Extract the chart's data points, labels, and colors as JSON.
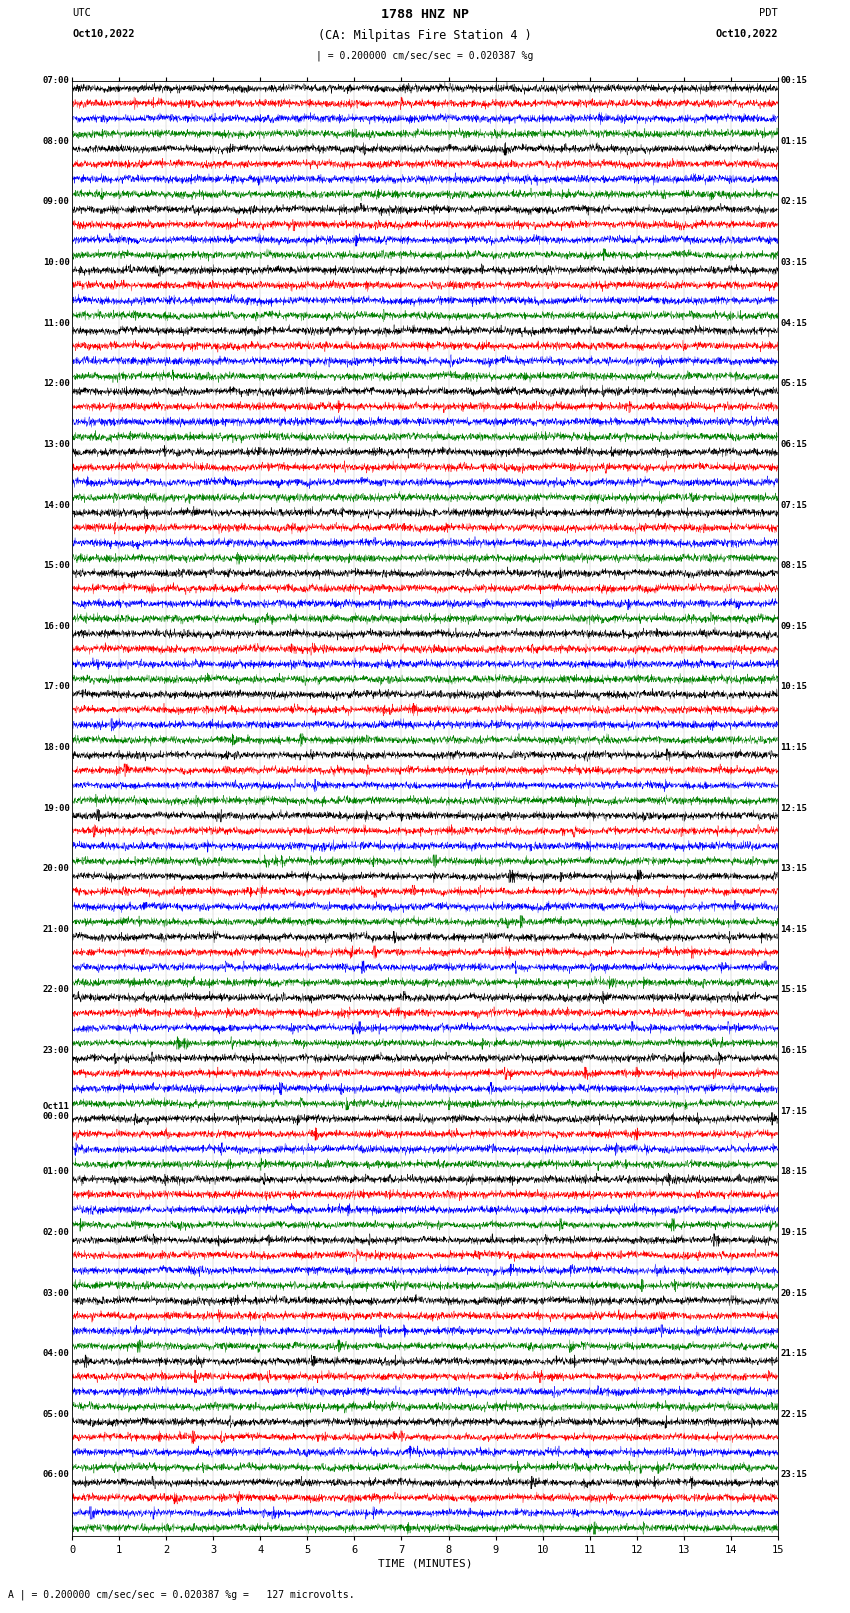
{
  "title_line1": "1788 HNZ NP",
  "title_line2": "(CA: Milpitas Fire Station 4 )",
  "scale_label": "| = 0.200000 cm/sec/sec = 0.020387 %g",
  "left_header": "UTC",
  "left_subheader": "Oct10,2022",
  "right_header": "PDT",
  "right_subheader": "Oct10,2022",
  "xlabel": "TIME (MINUTES)",
  "footer": "A | = 0.200000 cm/sec/sec = 0.020387 %g =   127 microvolts.",
  "xlim": [
    0,
    15
  ],
  "xticks": [
    0,
    1,
    2,
    3,
    4,
    5,
    6,
    7,
    8,
    9,
    10,
    11,
    12,
    13,
    14,
    15
  ],
  "bg_color": "#ffffff",
  "trace_colors": [
    "black",
    "red",
    "blue",
    "green"
  ],
  "fig_width": 8.5,
  "fig_height": 16.13,
  "dpi": 100,
  "left_times": [
    "07:00",
    "",
    "",
    "",
    "08:00",
    "",
    "",
    "",
    "09:00",
    "",
    "",
    "",
    "10:00",
    "",
    "",
    "",
    "11:00",
    "",
    "",
    "",
    "12:00",
    "",
    "",
    "",
    "13:00",
    "",
    "",
    "",
    "14:00",
    "",
    "",
    "",
    "15:00",
    "",
    "",
    "",
    "16:00",
    "",
    "",
    "",
    "17:00",
    "",
    "",
    "",
    "18:00",
    "",
    "",
    "",
    "19:00",
    "",
    "",
    "",
    "20:00",
    "",
    "",
    "",
    "21:00",
    "",
    "",
    "",
    "22:00",
    "",
    "",
    "",
    "23:00",
    "",
    "",
    "",
    "Oct11\n00:00",
    "",
    "",
    "",
    "01:00",
    "",
    "",
    "",
    "02:00",
    "",
    "",
    "",
    "03:00",
    "",
    "",
    "",
    "04:00",
    "",
    "",
    "",
    "05:00",
    "",
    "",
    "",
    "06:00",
    "",
    "",
    ""
  ],
  "right_times": [
    "00:15",
    "",
    "",
    "",
    "01:15",
    "",
    "",
    "",
    "02:15",
    "",
    "",
    "",
    "03:15",
    "",
    "",
    "",
    "04:15",
    "",
    "",
    "",
    "05:15",
    "",
    "",
    "",
    "06:15",
    "",
    "",
    "",
    "07:15",
    "",
    "",
    "",
    "08:15",
    "",
    "",
    "",
    "09:15",
    "",
    "",
    "",
    "10:15",
    "",
    "",
    "",
    "11:15",
    "",
    "",
    "",
    "12:15",
    "",
    "",
    "",
    "13:15",
    "",
    "",
    "",
    "14:15",
    "",
    "",
    "",
    "15:15",
    "",
    "",
    "",
    "16:15",
    "",
    "",
    "",
    "17:15",
    "",
    "",
    "",
    "18:15",
    "",
    "",
    "",
    "19:15",
    "",
    "",
    "",
    "20:15",
    "",
    "",
    "",
    "21:15",
    "",
    "",
    "",
    "22:15",
    "",
    "",
    "",
    "23:15",
    "",
    "",
    ""
  ],
  "n_traces": 96,
  "n_points": 3000
}
